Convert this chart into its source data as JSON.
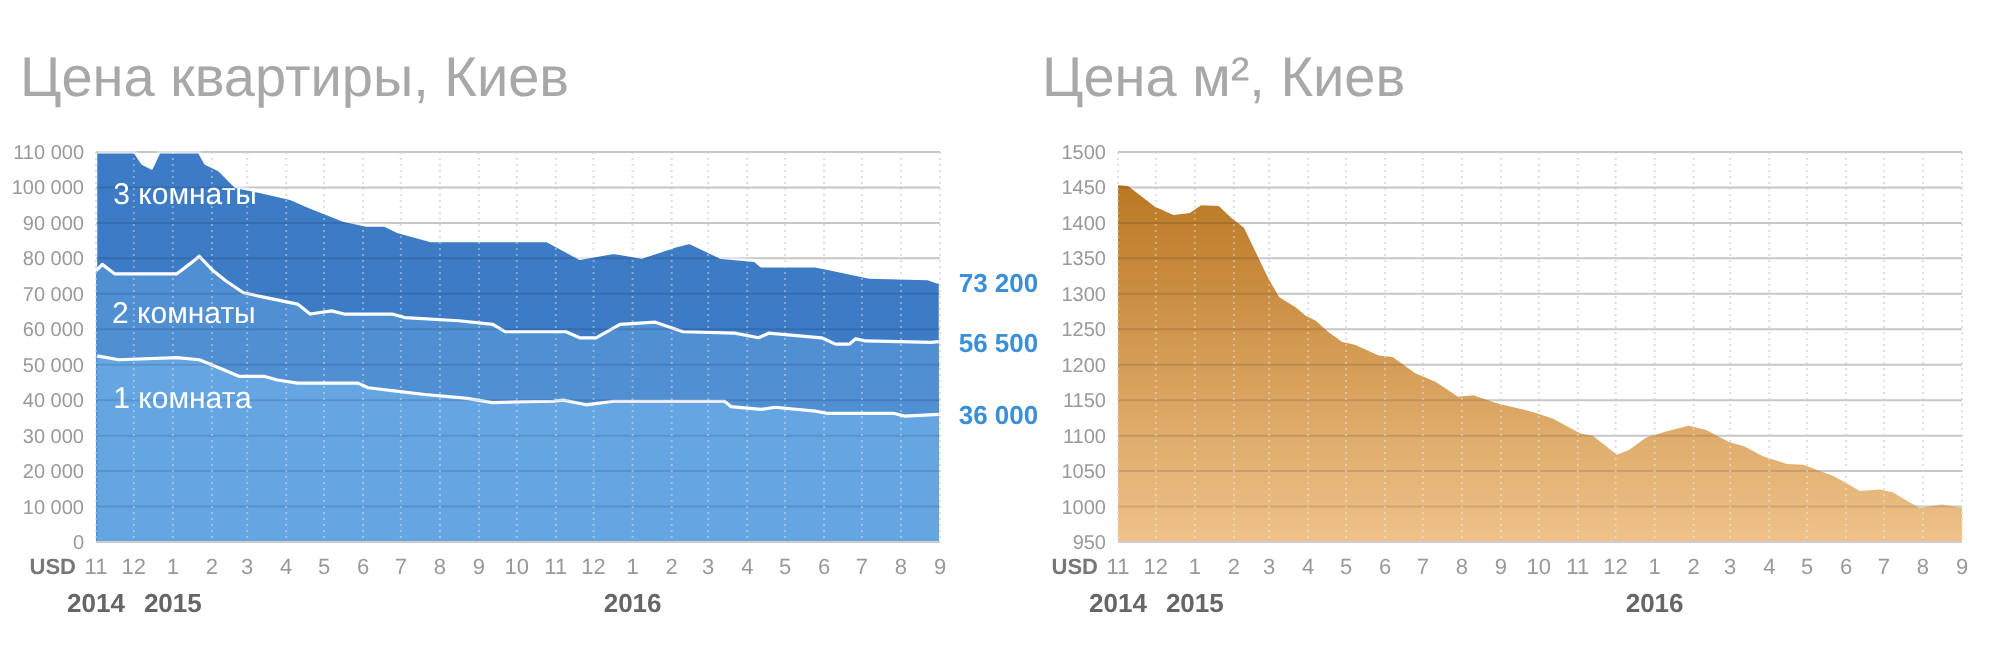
{
  "chart_data": [
    {
      "type": "area",
      "title": "Цена квартиры, Киев",
      "ylabel": "USD",
      "xlim": [
        "2014-11-01",
        "2016-09-01"
      ],
      "ylim": [
        0,
        110000
      ],
      "yticks": [
        {
          "value": 0,
          "label": "0"
        },
        {
          "value": 10000,
          "label": "10 000"
        },
        {
          "value": 20000,
          "label": "20 000"
        },
        {
          "value": 30000,
          "label": "30 000"
        },
        {
          "value": 40000,
          "label": "40 000"
        },
        {
          "value": 50000,
          "label": "50 000"
        },
        {
          "value": 60000,
          "label": "60 000"
        },
        {
          "value": 70000,
          "label": "70 000"
        },
        {
          "value": 80000,
          "label": "80 000"
        },
        {
          "value": 90000,
          "label": "90 000"
        },
        {
          "value": 100000,
          "label": "100 000"
        },
        {
          "value": 110000,
          "label": "110 000"
        }
      ],
      "xticks": [
        {
          "value": "2014-11",
          "label": "11"
        },
        {
          "value": "2014-12",
          "label": "12"
        },
        {
          "value": "2015-01",
          "label": "1"
        },
        {
          "value": "2015-02",
          "label": "2"
        },
        {
          "value": "2015-03",
          "label": "3"
        },
        {
          "value": "2015-04",
          "label": "4"
        },
        {
          "value": "2015-05",
          "label": "5"
        },
        {
          "value": "2015-06",
          "label": "6"
        },
        {
          "value": "2015-07",
          "label": "7"
        },
        {
          "value": "2015-08",
          "label": "8"
        },
        {
          "value": "2015-09",
          "label": "9"
        },
        {
          "value": "2015-10",
          "label": "10"
        },
        {
          "value": "2015-11",
          "label": "11"
        },
        {
          "value": "2015-12",
          "label": "12"
        },
        {
          "value": "2016-01",
          "label": "1"
        },
        {
          "value": "2016-02",
          "label": "2"
        },
        {
          "value": "2016-03",
          "label": "3"
        },
        {
          "value": "2016-04",
          "label": "4"
        },
        {
          "value": "2016-05",
          "label": "5"
        },
        {
          "value": "2016-06",
          "label": "6"
        },
        {
          "value": "2016-07",
          "label": "7"
        },
        {
          "value": "2016-08",
          "label": "8"
        },
        {
          "value": "2016-09",
          "label": "9"
        }
      ],
      "annotations": [
        "2014",
        "2015",
        "2016"
      ],
      "grid": true,
      "series": [
        {
          "name": "3 комнаты",
          "color": "#3d7cc4",
          "x": [
            "2014-11-02",
            "2014-12-02",
            "2014-12-08",
            "2014-12-15",
            "2014-12-21",
            "2015-01-22",
            "2015-01-27",
            "2015-02-07",
            "2015-02-20",
            "2015-03-12",
            "2015-04-05",
            "2015-04-20",
            "2015-05-17",
            "2015-06-03",
            "2015-06-18",
            "2015-06-29",
            "2015-07-25",
            "2015-09-02",
            "2015-10-25",
            "2015-11-20",
            "2015-12-17",
            "2016-01-08",
            "2016-02-04",
            "2016-02-15",
            "2016-03-01",
            "2016-03-11",
            "2016-04-07",
            "2016-04-12",
            "2016-05-25",
            "2016-06-05",
            "2016-07-07",
            "2016-08-22",
            "2016-08-31"
          ],
          "values": [
            110000,
            110000,
            106800,
            105500,
            110000,
            110000,
            106800,
            104900,
            100200,
            98800,
            96800,
            94500,
            90700,
            89400,
            89400,
            87500,
            85000,
            85000,
            85000,
            80000,
            81700,
            80300,
            83500,
            84500,
            82000,
            80300,
            79400,
            77900,
            77900,
            77100,
            74700,
            74300,
            73200
          ],
          "value_labels": [
            null,
            null,
            null,
            null,
            null,
            null,
            null,
            null,
            null,
            null,
            null,
            null,
            null,
            null,
            null,
            null,
            null,
            null,
            null,
            null,
            null,
            null,
            null,
            null,
            null,
            null,
            null,
            null,
            null,
            null,
            null,
            null,
            "73 200"
          ]
        },
        {
          "name": "2 комнаты",
          "color": "#4f8fd2",
          "x": [
            "2014-11-01",
            "2014-11-06",
            "2014-11-16",
            "2015-01-04",
            "2015-01-14",
            "2015-01-22",
            "2015-02-02",
            "2015-02-12",
            "2015-02-26",
            "2015-03-15",
            "2015-04-10",
            "2015-04-20",
            "2015-05-07",
            "2015-05-17",
            "2015-06-24",
            "2015-07-04",
            "2015-08-16",
            "2015-09-12",
            "2015-09-22",
            "2015-11-09",
            "2015-11-20",
            "2015-12-03",
            "2015-12-22",
            "2016-01-19",
            "2016-02-10",
            "2016-03-22",
            "2016-04-10",
            "2016-04-18",
            "2016-05-30",
            "2016-06-10",
            "2016-06-21",
            "2016-06-26",
            "2016-07-04",
            "2016-08-25",
            "2016-08-31"
          ],
          "values": [
            76500,
            78300,
            75600,
            75600,
            78300,
            80600,
            76500,
            73700,
            70300,
            69000,
            67100,
            64300,
            65200,
            64300,
            64300,
            63300,
            62400,
            61400,
            59300,
            59300,
            57600,
            57600,
            61400,
            62000,
            59300,
            58900,
            57600,
            58900,
            57600,
            55800,
            55800,
            57300,
            56700,
            56300,
            56500
          ],
          "value_labels": [
            null,
            null,
            null,
            null,
            null,
            null,
            null,
            null,
            null,
            null,
            null,
            null,
            null,
            null,
            null,
            null,
            null,
            null,
            null,
            null,
            null,
            null,
            null,
            null,
            null,
            null,
            null,
            null,
            null,
            null,
            null,
            null,
            null,
            null,
            "56 500"
          ]
        },
        {
          "name": "1 комната",
          "color": "#65a6e2",
          "x": [
            "2014-11-02",
            "2014-11-19",
            "2015-01-04",
            "2015-01-22",
            "2015-02-07",
            "2015-02-23",
            "2015-03-15",
            "2015-03-25",
            "2015-04-10",
            "2015-05-28",
            "2015-06-05",
            "2015-06-29",
            "2015-07-20",
            "2015-08-21",
            "2015-09-12",
            "2015-10-01",
            "2015-10-30",
            "2015-11-07",
            "2015-11-25",
            "2015-12-17",
            "2016-03-14",
            "2016-03-19",
            "2016-04-12",
            "2016-04-23",
            "2016-05-25",
            "2016-06-03",
            "2016-07-26",
            "2016-08-04",
            "2016-08-31"
          ],
          "values": [
            52500,
            51400,
            52000,
            51400,
            49100,
            46700,
            46700,
            45700,
            44800,
            44800,
            43500,
            42500,
            41600,
            40600,
            39300,
            39500,
            39700,
            40000,
            38700,
            39700,
            39700,
            38200,
            37400,
            38000,
            36900,
            36300,
            36300,
            35500,
            36000
          ],
          "value_labels": [
            null,
            null,
            null,
            null,
            null,
            null,
            null,
            null,
            null,
            null,
            null,
            null,
            null,
            null,
            null,
            null,
            null,
            null,
            null,
            null,
            null,
            null,
            null,
            null,
            null,
            null,
            null,
            null,
            "36 000"
          ]
        }
      ]
    },
    {
      "type": "area",
      "title": "Цена м², Киев",
      "ylabel": "USD",
      "xlim": [
        "2014-11-01",
        "2016-09-01"
      ],
      "ylim": [
        950,
        1500
      ],
      "yticks": [
        950,
        1000,
        1050,
        1100,
        1150,
        1200,
        1250,
        1300,
        1350,
        1400,
        1450,
        1500
      ],
      "xticks": [
        {
          "value": "2014-11",
          "label": "11"
        },
        {
          "value": "2014-12",
          "label": "12"
        },
        {
          "value": "2015-01",
          "label": "1"
        },
        {
          "value": "2015-02",
          "label": "2"
        },
        {
          "value": "2015-03",
          "label": "3"
        },
        {
          "value": "2015-04",
          "label": "4"
        },
        {
          "value": "2015-05",
          "label": "5"
        },
        {
          "value": "2015-06",
          "label": "6"
        },
        {
          "value": "2015-07",
          "label": "7"
        },
        {
          "value": "2015-08",
          "label": "8"
        },
        {
          "value": "2015-09",
          "label": "9"
        },
        {
          "value": "2015-10",
          "label": "10"
        },
        {
          "value": "2015-11",
          "label": "11"
        },
        {
          "value": "2015-12",
          "label": "12"
        },
        {
          "value": "2016-01",
          "label": "1"
        },
        {
          "value": "2016-02",
          "label": "2"
        },
        {
          "value": "2016-03",
          "label": "3"
        },
        {
          "value": "2016-04",
          "label": "4"
        },
        {
          "value": "2016-05",
          "label": "5"
        },
        {
          "value": "2016-06",
          "label": "6"
        },
        {
          "value": "2016-07",
          "label": "7"
        },
        {
          "value": "2016-08",
          "label": "8"
        },
        {
          "value": "2016-09",
          "label": "9"
        }
      ],
      "annotations": [
        "2014",
        "2015",
        "2016"
      ],
      "grid": true,
      "series": [
        {
          "color": "#e0902a",
          "x": [
            "2014-11-01",
            "2014-11-09",
            "2014-11-30",
            "2014-12-15",
            "2014-12-28",
            "2015-01-06",
            "2015-01-20",
            "2015-01-30",
            "2015-02-09",
            "2015-02-28",
            "2015-03-09",
            "2015-03-22",
            "2015-03-30",
            "2015-04-07",
            "2015-04-17",
            "2015-04-28",
            "2015-05-08",
            "2015-05-27",
            "2015-06-07",
            "2015-06-25",
            "2015-07-11",
            "2015-07-29",
            "2015-08-10",
            "2015-08-28",
            "2015-09-27",
            "2015-10-12",
            "2015-11-03",
            "2015-11-13",
            "2015-12-02",
            "2015-12-12",
            "2015-12-25",
            "2016-01-10",
            "2016-01-28",
            "2016-02-11",
            "2016-02-29",
            "2016-03-12",
            "2016-03-27",
            "2016-04-15",
            "2016-04-28",
            "2016-05-22",
            "2016-06-12",
            "2016-06-28",
            "2016-07-08",
            "2016-07-29",
            "2016-08-16",
            "2016-09-01"
          ],
          "values": [
            1453,
            1452,
            1423,
            1411,
            1414,
            1425,
            1424,
            1407,
            1393,
            1323,
            1295,
            1281,
            1269,
            1262,
            1246,
            1232,
            1228,
            1213,
            1211,
            1188,
            1176,
            1155,
            1157,
            1146,
            1133,
            1124,
            1103,
            1100,
            1073,
            1080,
            1097,
            1106,
            1114,
            1108,
            1091,
            1085,
            1071,
            1060,
            1059,
            1043,
            1022,
            1024,
            1020,
            998,
            1003,
            998
          ]
        }
      ]
    }
  ]
}
